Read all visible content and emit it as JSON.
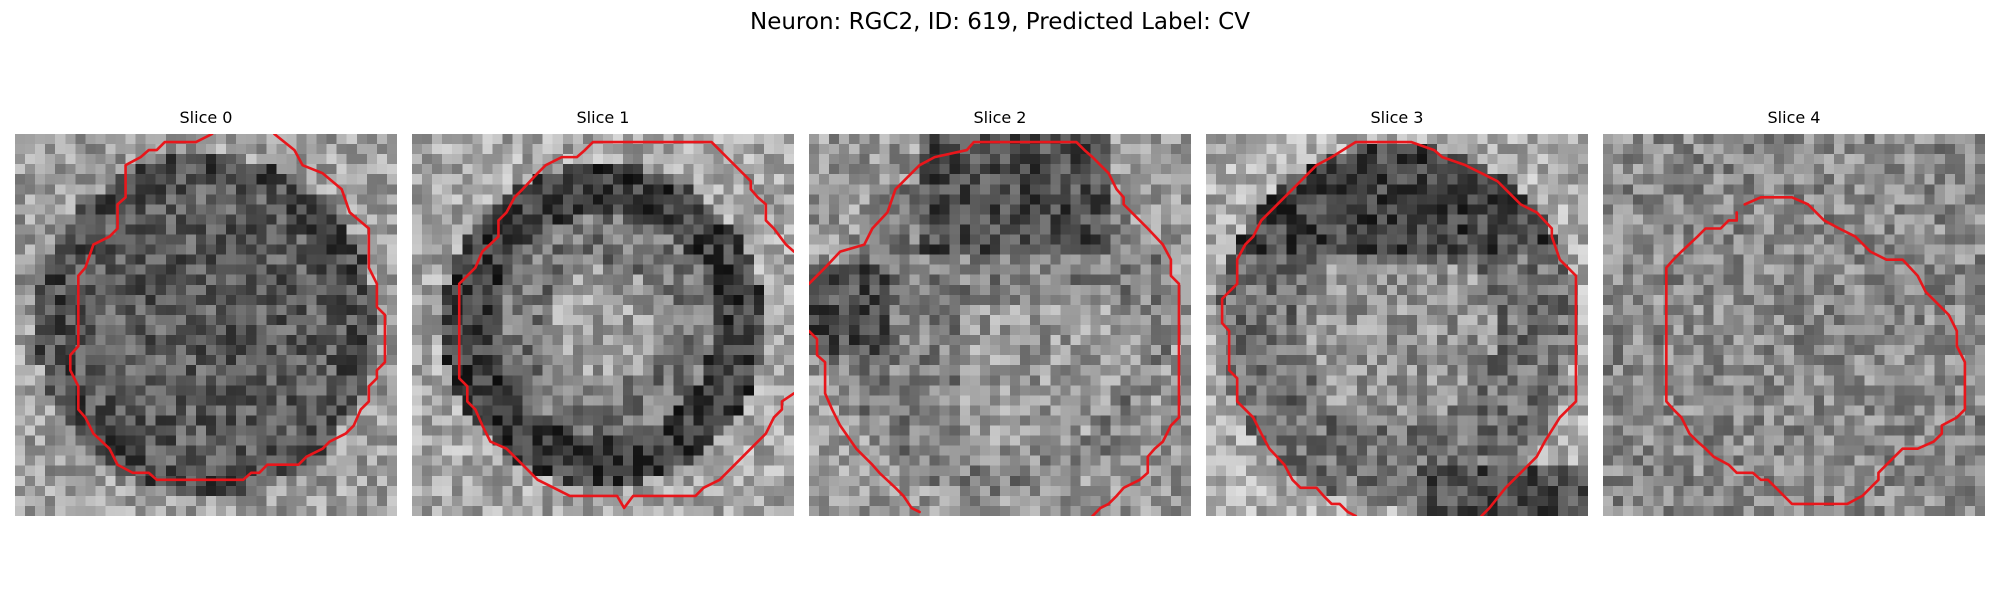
{
  "figure": {
    "title": "Neuron: RGC2, ID: 619, Predicted Label: CV"
  },
  "contour_color": "#e8161b",
  "panels": [
    {
      "title": "Slice 0",
      "seed": 11,
      "pattern": "ring-dark",
      "contour": "s0"
    },
    {
      "title": "Slice 1",
      "seed": 23,
      "pattern": "ring-strong",
      "contour": "s1"
    },
    {
      "title": "Slice 2",
      "seed": 37,
      "pattern": "diffuse",
      "contour": "s2"
    },
    {
      "title": "Slice 3",
      "seed": 51,
      "pattern": "ring-top",
      "contour": "s3"
    },
    {
      "title": "Slice 4",
      "seed": 73,
      "pattern": "noise",
      "contour": "s4"
    }
  ]
}
